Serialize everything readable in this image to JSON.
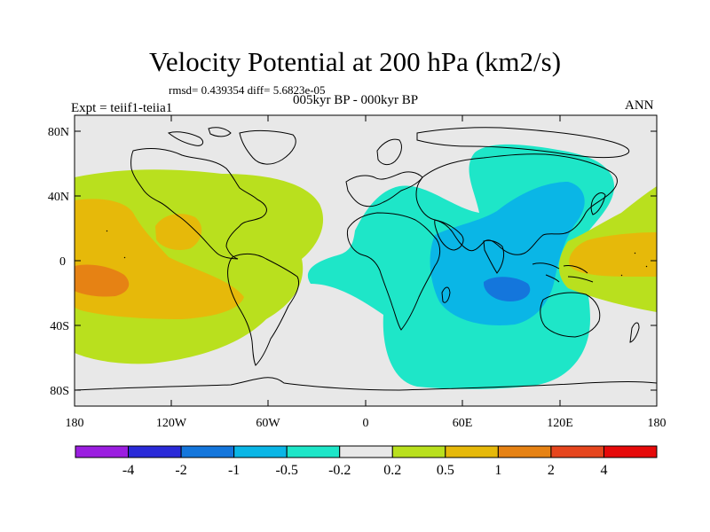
{
  "header": {
    "title": "Velocity Potential at 200 hPa (km2/s)",
    "stats": "rmsd= 0.439354  diff= 5.6823e-05",
    "experiment": "Expt = teiif1-teiia1",
    "period": "005kyr BP - 000kyr BP",
    "season": "ANN"
  },
  "axes": {
    "lat_labels": [
      "80N",
      "40N",
      "0",
      "40S",
      "80S"
    ],
    "lon_labels": [
      "180",
      "120W",
      "60W",
      "0",
      "60E",
      "120E",
      "180"
    ]
  },
  "colorbar": {
    "colors": [
      "#9b1ee0",
      "#2a2ad8",
      "#1476dc",
      "#0ab6e6",
      "#1ee6c8",
      "#e8e8e8",
      "#b9e01e",
      "#e6b90a",
      "#e68214",
      "#e6461e",
      "#e60a0a"
    ],
    "labels": [
      "-4",
      "-2",
      "-1",
      "-0.5",
      "-0.2",
      "0.2",
      "0.5",
      "1",
      "2",
      "4"
    ]
  },
  "map": {
    "background": "#e8e8e8",
    "land_outline": "#000000"
  }
}
